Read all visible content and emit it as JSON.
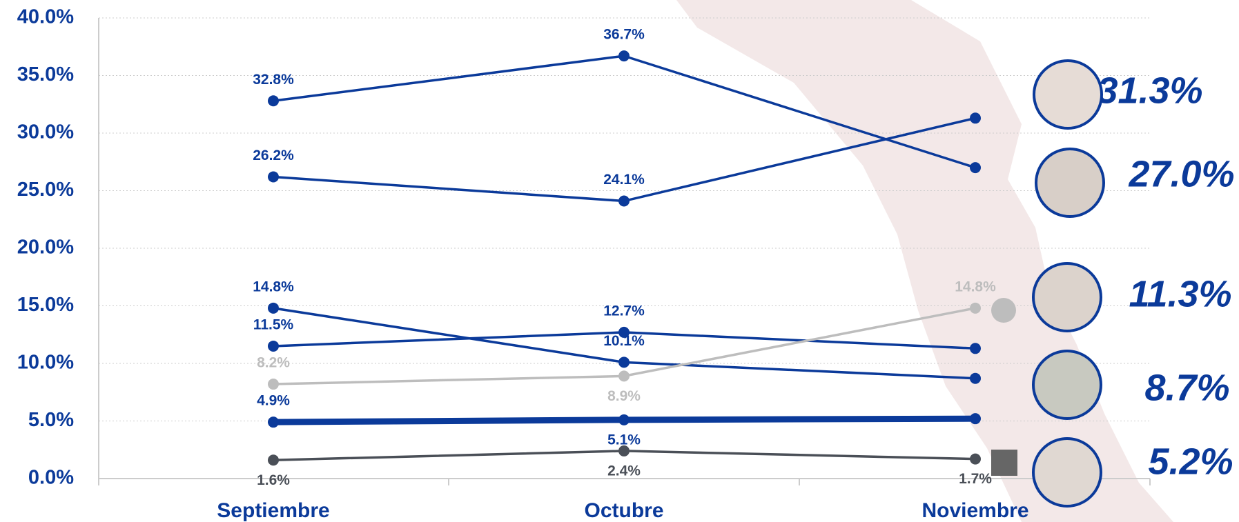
{
  "chart_data": {
    "type": "line",
    "categories": [
      "Septiembre",
      "Octubre",
      "Noviembre"
    ],
    "ylim": [
      0,
      40
    ],
    "yticks": [
      {
        "value": 0,
        "label": "0.0%"
      },
      {
        "value": 5,
        "label": "5.0%"
      },
      {
        "value": 10,
        "label": "10.0%"
      },
      {
        "value": 15,
        "label": "15.0%"
      },
      {
        "value": 20,
        "label": "20.0%"
      },
      {
        "value": 25,
        "label": "25.0%"
      },
      {
        "value": 30,
        "label": "30.0%"
      },
      {
        "value": 35,
        "label": "35.0%"
      },
      {
        "value": 40,
        "label": "40.0%"
      }
    ],
    "grid": true,
    "series": [
      {
        "color": "#0b3a9a",
        "values": [
          32.8,
          36.7,
          27.0
        ],
        "value_labels": [
          "32.8%",
          "36.7%",
          "27.0%"
        ]
      },
      {
        "color": "#0b3a9a",
        "values": [
          26.2,
          24.1,
          31.3
        ],
        "value_labels": [
          "26.2%",
          "24.1%",
          "31.3%"
        ]
      },
      {
        "color": "#0b3a9a",
        "values": [
          14.8,
          10.1,
          8.7
        ],
        "value_labels": [
          "14.8%",
          "10.1%",
          "8.7%"
        ]
      },
      {
        "color": "#0b3a9a",
        "values": [
          11.5,
          12.7,
          11.3
        ],
        "value_labels": [
          "11.5%",
          "12.7%",
          "11.3%"
        ]
      },
      {
        "color": "#0b3a9a",
        "values": [
          4.9,
          5.1,
          5.2
        ],
        "value_labels": [
          "4.9%",
          "5.1%",
          "5.2%"
        ]
      },
      {
        "color": "#bdbdbd",
        "values": [
          8.2,
          8.9,
          14.8
        ],
        "value_labels": [
          "8.2%",
          "8.9%",
          "14.8%"
        ]
      },
      {
        "color": "#4a4f57",
        "values": [
          1.6,
          2.4,
          1.7
        ],
        "value_labels": [
          "1.6%",
          "2.4%",
          "1.7%"
        ]
      }
    ]
  }
}
